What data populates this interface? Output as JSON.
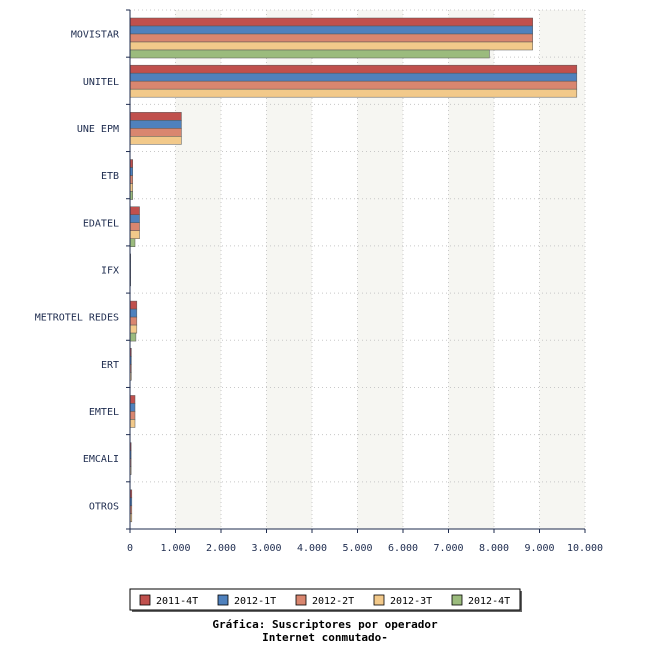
{
  "chart_data": {
    "type": "bar",
    "orientation": "horizontal",
    "categories": [
      "MOVISTAR",
      "UNITEL",
      "UNE EPM",
      "ETB",
      "EDATEL",
      "IFX",
      "METROTEL REDES",
      "ERT",
      "EMTEL",
      "EMCALI",
      "OTROS"
    ],
    "series": [
      {
        "name": "2011-4T",
        "color": "#c0504d",
        "values": [
          8850,
          9820,
          1130,
          60,
          210,
          15,
          150,
          30,
          110,
          25,
          40
        ]
      },
      {
        "name": "2012-1T",
        "color": "#4f81bd",
        "values": [
          8850,
          9820,
          1130,
          60,
          210,
          15,
          150,
          30,
          110,
          25,
          40
        ]
      },
      {
        "name": "2012-2T",
        "color": "#d9866f",
        "values": [
          8850,
          9820,
          1130,
          60,
          210,
          15,
          150,
          30,
          110,
          25,
          40
        ]
      },
      {
        "name": "2012-3T",
        "color": "#f2c98a",
        "values": [
          8850,
          9820,
          1130,
          60,
          210,
          15,
          150,
          30,
          110,
          25,
          40
        ]
      },
      {
        "name": "2012-4T",
        "color": "#9bbb7d",
        "values": [
          7900,
          0,
          0,
          60,
          110,
          0,
          130,
          0,
          0,
          0,
          0
        ]
      }
    ],
    "xlim": [
      0,
      10000
    ],
    "xticks": [
      0,
      1000,
      2000,
      3000,
      4000,
      5000,
      6000,
      7000,
      8000,
      9000,
      10000
    ],
    "xtick_labels": [
      "0",
      "1.000",
      "2.000",
      "3.000",
      "4.000",
      "5.000",
      "6.000",
      "7.000",
      "8.000",
      "9.000",
      "10.000"
    ],
    "grid": true,
    "legend_position": "bottom"
  },
  "caption": {
    "line1": "Gráfica: Suscriptores por operador",
    "line2": "Internet conmutado-"
  }
}
